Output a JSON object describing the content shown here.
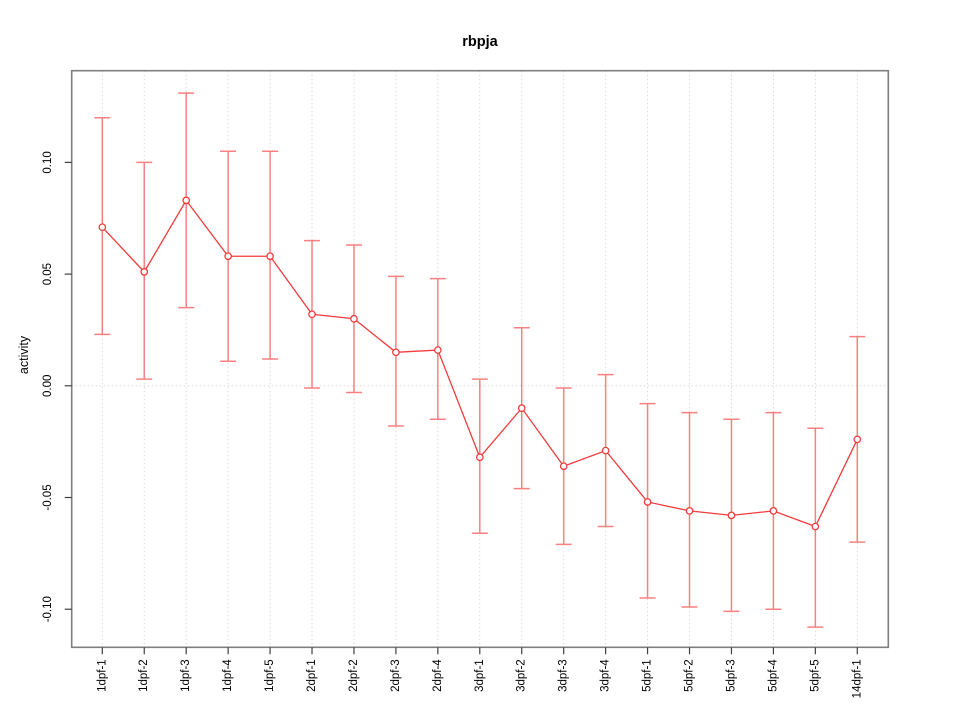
{
  "chart_data": {
    "type": "line",
    "title": "rbpja",
    "xlabel": "",
    "ylabel": "activity",
    "legend": "none",
    "grid": "dotted vertical gridline at every category; dotted horizontal line at y=0",
    "ylim": [
      -0.117,
      0.141
    ],
    "y_ticks": [
      0.1,
      0.05,
      0.0,
      -0.05,
      -0.1
    ],
    "y_tick_labels": [
      "0.10",
      "0.05",
      "0.00",
      "-0.05",
      "-0.10"
    ],
    "categories": [
      "1dpf-1",
      "1dpf-2",
      "1dpf-3",
      "1dpf-4",
      "1dpf-5",
      "2dpf-1",
      "2dpf-2",
      "2dpf-3",
      "2dpf-4",
      "3dpf-1",
      "3dpf-2",
      "3dpf-3",
      "3dpf-4",
      "5dpf-1",
      "5dpf-2",
      "5dpf-3",
      "5dpf-4",
      "5dpf-5",
      "14dpf-1"
    ],
    "series": [
      {
        "name": "activity",
        "marker": "open-circle",
        "values": [
          0.071,
          0.051,
          0.083,
          0.058,
          0.058,
          0.032,
          0.03,
          0.015,
          0.016,
          -0.032,
          -0.01,
          -0.036,
          -0.029,
          -0.052,
          -0.056,
          -0.058,
          -0.056,
          -0.063,
          -0.024
        ],
        "ci_low": [
          0.023,
          0.003,
          0.035,
          0.011,
          0.012,
          -0.001,
          -0.003,
          -0.018,
          -0.015,
          -0.066,
          -0.046,
          -0.071,
          -0.063,
          -0.095,
          -0.099,
          -0.101,
          -0.1,
          -0.108,
          -0.07
        ],
        "ci_high": [
          0.12,
          0.1,
          0.131,
          0.105,
          0.105,
          0.065,
          0.063,
          0.049,
          0.048,
          0.003,
          0.026,
          -0.001,
          0.005,
          -0.008,
          -0.012,
          -0.015,
          -0.012,
          -0.019,
          0.022
        ]
      }
    ],
    "colors": {
      "series": "#f23b3b",
      "error_bar": "#f98080",
      "grid": "#d9d9d9",
      "frame": "#7f7f7f",
      "tick": "#404040",
      "text": "#000000",
      "background": "#ffffff"
    }
  }
}
